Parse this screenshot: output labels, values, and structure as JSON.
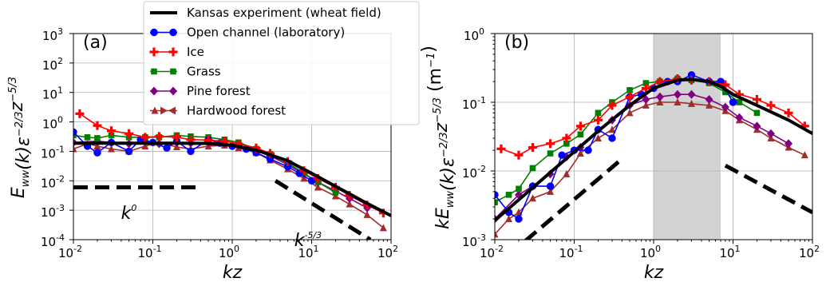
{
  "chart_data": [
    {
      "panel": "(a)",
      "type": "line",
      "xscale": "log",
      "yscale": "log",
      "xlim": [
        0.01,
        100
      ],
      "ylim": [
        0.0001,
        1000
      ],
      "xlabel": "kz",
      "ylabel": "E_ww(k)ε^-2/3 z^-5/3",
      "x_ticks": [
        "10",
        "10",
        "10",
        "10",
        "10"
      ],
      "x_tick_exp": [
        "-2",
        "-1",
        "0",
        "1",
        "2"
      ],
      "y_ticks": [
        "10",
        "10",
        "10",
        "10",
        "10",
        "10",
        "10",
        "10"
      ],
      "y_tick_exp": [
        "-4",
        "-3",
        "-2",
        "-1",
        "0",
        "1",
        "2",
        "3"
      ],
      "grid": true,
      "annotations": [
        {
          "label": "k",
          "exp": "0",
          "x": 0.05,
          "y": 0.0005
        },
        {
          "label": "k",
          "exp": "-5/3",
          "x": 9.0,
          "y": 6e-05
        }
      ],
      "reference_lines": [
        {
          "name": "k0",
          "x": [
            0.01,
            0.35
          ],
          "y": [
            0.006,
            0.006
          ]
        },
        {
          "name": "k-5/3",
          "x": [
            3.5,
            55
          ],
          "y": [
            0.01,
            0.0001
          ]
        }
      ],
      "series": [
        {
          "name": "Kansas experiment (wheat field)",
          "color": "#000000",
          "marker": "none",
          "x": [
            0.01,
            0.02,
            0.05,
            0.1,
            0.2,
            0.5,
            1,
            2,
            5,
            10,
            20,
            50,
            100
          ],
          "y": [
            0.19,
            0.19,
            0.19,
            0.19,
            0.19,
            0.185,
            0.16,
            0.11,
            0.048,
            0.018,
            0.0065,
            0.0017,
            0.00065
          ]
        },
        {
          "name": "Open channel (laboratory)",
          "color": "#0000ff",
          "marker": "circle",
          "x": [
            0.01,
            0.015,
            0.02,
            0.03,
            0.05,
            0.07,
            0.1,
            0.15,
            0.2,
            0.3,
            0.5,
            0.7,
            1,
            1.5,
            2,
            3,
            5,
            7,
            10
          ],
          "y": [
            0.45,
            0.15,
            0.09,
            0.2,
            0.1,
            0.25,
            0.2,
            0.13,
            0.22,
            0.1,
            0.25,
            0.19,
            0.15,
            0.12,
            0.09,
            0.055,
            0.03,
            0.018,
            0.01
          ]
        },
        {
          "name": "Ice",
          "color": "#ff0000",
          "marker": "plus",
          "x": [
            0.012,
            0.02,
            0.03,
            0.05,
            0.08,
            0.12,
            0.2,
            0.3,
            0.5,
            0.8,
            1.2,
            2,
            3,
            5,
            8,
            12,
            20,
            30,
            50,
            80
          ],
          "y": [
            1.9,
            0.75,
            0.5,
            0.4,
            0.3,
            0.32,
            0.3,
            0.25,
            0.24,
            0.22,
            0.18,
            0.13,
            0.085,
            0.045,
            0.022,
            0.012,
            0.006,
            0.0032,
            0.0015,
            0.0008
          ]
        },
        {
          "name": "Grass",
          "color": "#008000",
          "marker": "square",
          "x": [
            0.01,
            0.015,
            0.02,
            0.03,
            0.05,
            0.08,
            0.12,
            0.2,
            0.3,
            0.5,
            0.8,
            1.2,
            2,
            3,
            5,
            8,
            12,
            20
          ],
          "y": [
            0.35,
            0.3,
            0.28,
            0.35,
            0.3,
            0.3,
            0.3,
            0.35,
            0.32,
            0.3,
            0.25,
            0.2,
            0.12,
            0.08,
            0.04,
            0.018,
            0.009,
            0.004
          ]
        },
        {
          "name": "Pine forest",
          "color": "#800080",
          "marker": "diamond",
          "x": [
            0.01,
            0.02,
            0.03,
            0.05,
            0.08,
            0.12,
            0.2,
            0.3,
            0.5,
            0.8,
            1.2,
            2,
            3,
            5,
            8,
            12,
            20,
            30,
            50
          ],
          "y": [
            0.2,
            0.22,
            0.2,
            0.18,
            0.22,
            0.18,
            0.2,
            0.19,
            0.2,
            0.18,
            0.16,
            0.11,
            0.07,
            0.035,
            0.017,
            0.009,
            0.0045,
            0.0025,
            0.0012
          ]
        },
        {
          "name": "Hardwood forest",
          "color": "#a52a2a",
          "marker": "triangles",
          "x": [
            0.01,
            0.015,
            0.02,
            0.03,
            0.05,
            0.08,
            0.12,
            0.2,
            0.3,
            0.5,
            0.8,
            1.2,
            2,
            3,
            5,
            8,
            12,
            20,
            30,
            50,
            80
          ],
          "y": [
            0.12,
            0.18,
            0.15,
            0.12,
            0.1,
            0.15,
            0.2,
            0.14,
            0.12,
            0.15,
            0.16,
            0.13,
            0.09,
            0.05,
            0.025,
            0.012,
            0.006,
            0.003,
            0.0016,
            0.0007,
            0.00025
          ]
        }
      ]
    },
    {
      "panel": "(b)",
      "type": "line",
      "xscale": "log",
      "yscale": "log",
      "xlim": [
        0.01,
        100
      ],
      "ylim": [
        0.001,
        1.0
      ],
      "xlabel": "kz",
      "ylabel": "kE_ww(k)ε^-2/3 z^-5/3 (m^-1)",
      "x_ticks": [
        "10",
        "10",
        "10",
        "10",
        "10"
      ],
      "x_tick_exp": [
        "-2",
        "-1",
        "0",
        "1",
        "2"
      ],
      "y_ticks": [
        "10",
        "10",
        "10",
        "10"
      ],
      "y_tick_exp": [
        "-3",
        "-2",
        "-1",
        "0"
      ],
      "grid": true,
      "shaded_band": {
        "x": [
          1,
          7
        ],
        "color": "#d3d3d3"
      },
      "reference_lines": [
        {
          "name": "slope 1",
          "x": [
            0.015,
            0.4
          ],
          "y": [
            0.0006,
            0.015
          ]
        },
        {
          "name": "slope -2/3",
          "x": [
            8,
            100
          ],
          "y": [
            0.012,
            0.0025
          ]
        }
      ],
      "series": [
        {
          "name": "Kansas experiment (wheat field)",
          "color": "#000000",
          "marker": "none",
          "x": [
            0.01,
            0.02,
            0.05,
            0.1,
            0.2,
            0.5,
            1,
            2,
            3,
            5,
            7,
            10,
            20,
            50,
            100
          ],
          "y": [
            0.0019,
            0.0038,
            0.0095,
            0.019,
            0.038,
            0.09,
            0.16,
            0.21,
            0.215,
            0.2,
            0.17,
            0.13,
            0.09,
            0.055,
            0.035
          ]
        },
        {
          "name": "Open channel (laboratory)",
          "color": "#0000ff",
          "marker": "circle",
          "x": [
            0.01,
            0.015,
            0.02,
            0.03,
            0.05,
            0.07,
            0.1,
            0.15,
            0.2,
            0.3,
            0.5,
            0.7,
            1,
            1.5,
            2,
            3,
            5,
            7,
            10
          ],
          "y": [
            0.0045,
            0.0025,
            0.002,
            0.006,
            0.006,
            0.017,
            0.02,
            0.02,
            0.04,
            0.03,
            0.12,
            0.13,
            0.16,
            0.2,
            0.2,
            0.25,
            0.2,
            0.2,
            0.1
          ]
        },
        {
          "name": "Ice",
          "color": "#ff0000",
          "marker": "plus",
          "x": [
            0.012,
            0.02,
            0.03,
            0.05,
            0.08,
            0.12,
            0.2,
            0.3,
            0.5,
            0.8,
            1.2,
            2,
            3,
            5,
            8,
            12,
            20,
            30,
            50,
            80
          ],
          "y": [
            0.021,
            0.017,
            0.022,
            0.025,
            0.03,
            0.045,
            0.055,
            0.09,
            0.12,
            0.16,
            0.2,
            0.22,
            0.21,
            0.2,
            0.18,
            0.13,
            0.11,
            0.09,
            0.07,
            0.045
          ]
        },
        {
          "name": "Grass",
          "color": "#008000",
          "marker": "square",
          "x": [
            0.01,
            0.015,
            0.02,
            0.03,
            0.05,
            0.08,
            0.12,
            0.2,
            0.3,
            0.5,
            0.8,
            1.2,
            2,
            3,
            5,
            8,
            12,
            20
          ],
          "y": [
            0.0035,
            0.0045,
            0.0055,
            0.011,
            0.018,
            0.025,
            0.034,
            0.07,
            0.1,
            0.15,
            0.19,
            0.2,
            0.22,
            0.21,
            0.19,
            0.14,
            0.1,
            0.07
          ]
        },
        {
          "name": "Pine forest",
          "color": "#800080",
          "marker": "diamond",
          "x": [
            0.01,
            0.02,
            0.03,
            0.05,
            0.08,
            0.12,
            0.2,
            0.3,
            0.5,
            0.8,
            1.2,
            2,
            3,
            5,
            8,
            12,
            20,
            30,
            50
          ],
          "y": [
            0.002,
            0.0045,
            0.006,
            0.009,
            0.016,
            0.022,
            0.04,
            0.055,
            0.09,
            0.11,
            0.12,
            0.13,
            0.13,
            0.11,
            0.085,
            0.06,
            0.045,
            0.035,
            0.025
          ]
        },
        {
          "name": "Hardwood forest",
          "color": "#a52a2a",
          "marker": "triangles",
          "x": [
            0.01,
            0.015,
            0.02,
            0.03,
            0.05,
            0.08,
            0.12,
            0.2,
            0.3,
            0.5,
            0.8,
            1.2,
            2,
            3,
            5,
            8,
            12,
            20,
            30,
            50,
            80
          ],
          "y": [
            0.0012,
            0.002,
            0.0025,
            0.004,
            0.005,
            0.009,
            0.018,
            0.03,
            0.04,
            0.07,
            0.09,
            0.1,
            0.1,
            0.095,
            0.09,
            0.075,
            0.055,
            0.04,
            0.03,
            0.022,
            0.017
          ]
        }
      ]
    }
  ],
  "legend": {
    "placement": "top-center",
    "entries": [
      "Kansas experiment (wheat field)",
      "Open channel (laboratory)",
      "Ice",
      "Grass",
      "Pine forest",
      "Hardwood forest"
    ]
  }
}
